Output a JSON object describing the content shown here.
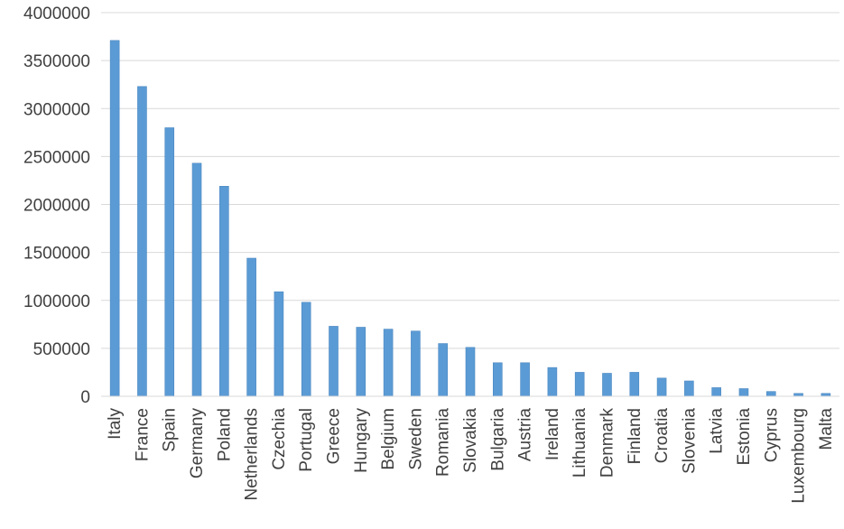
{
  "chart_data": {
    "type": "bar",
    "title": "",
    "xlabel": "",
    "ylabel": "",
    "ylim": [
      0,
      4000000
    ],
    "yticks": [
      0,
      500000,
      1000000,
      1500000,
      2000000,
      2500000,
      3000000,
      3500000,
      4000000
    ],
    "ytick_labels": [
      "0",
      "500000",
      "1000000",
      "1500000",
      "2000000",
      "2500000",
      "3000000",
      "3500000",
      "4000000"
    ],
    "grid": "horizontal",
    "bar_color": "#5b9bd5",
    "categories": [
      "Italy",
      "France",
      "Spain",
      "Germany",
      "Poland",
      "Netherlands",
      "Czechia",
      "Portugal",
      "Greece",
      "Hungary",
      "Belgium",
      "Sweden",
      "Romania",
      "Slovakia",
      "Bulgaria",
      "Austria",
      "Ireland",
      "Lithuania",
      "Denmark",
      "Finland",
      "Croatia",
      "Slovenia",
      "Latvia",
      "Estonia",
      "Cyprus",
      "Luxembourg",
      "Malta"
    ],
    "values": [
      3710000,
      3230000,
      2800000,
      2430000,
      2190000,
      1440000,
      1090000,
      980000,
      730000,
      720000,
      700000,
      680000,
      550000,
      510000,
      350000,
      350000,
      300000,
      250000,
      240000,
      250000,
      190000,
      160000,
      90000,
      80000,
      50000,
      30000,
      30000
    ]
  }
}
